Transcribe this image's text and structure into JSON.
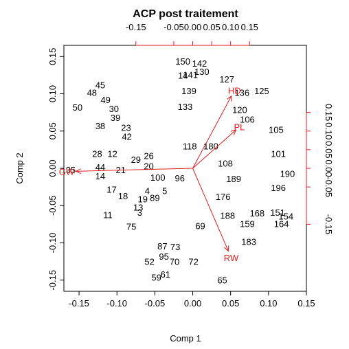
{
  "chart_data": {
    "type": "scatter",
    "subtype": "biplot",
    "title": "ACP post traitement",
    "xlabel": "Comp 1",
    "ylabel": "Comp 2",
    "xlim": [
      -0.17,
      0.15
    ],
    "ylim": [
      -0.165,
      0.165
    ],
    "x_ticks": [
      "-0.15",
      "-0.10",
      "-0.05",
      "0.00",
      "0.05",
      "0.10",
      "0.15"
    ],
    "y_ticks": [
      "-0.15",
      "-0.10",
      "-0.05",
      "0.00",
      "0.05",
      "0.10",
      "0.15"
    ],
    "loading_scale": 0.5,
    "top_ticks": [
      "-0.15",
      "-0.05",
      "0.00",
      "0.05",
      "0.10",
      "0.15"
    ],
    "right_ticks": [
      "-0.15",
      "-0.05",
      "0.00",
      "0.05",
      "0.10",
      "0.15"
    ],
    "variable_color": "#e41a1c",
    "observations": [
      {
        "label": "150",
        "x": -0.013,
        "y": 0.144
      },
      {
        "label": "142",
        "x": 0.009,
        "y": 0.141
      },
      {
        "label": "130",
        "x": 0.012,
        "y": 0.13
      },
      {
        "label": "14",
        "x": -0.013,
        "y": 0.125
      },
      {
        "label": "141",
        "x": -0.003,
        "y": 0.126
      },
      {
        "label": "127",
        "x": 0.045,
        "y": 0.12
      },
      {
        "label": "45",
        "x": -0.122,
        "y": 0.112
      },
      {
        "label": "48",
        "x": -0.133,
        "y": 0.102
      },
      {
        "label": "49",
        "x": -0.115,
        "y": 0.092
      },
      {
        "label": "139",
        "x": -0.005,
        "y": 0.104
      },
      {
        "label": "125",
        "x": 0.091,
        "y": 0.104
      },
      {
        "label": "136",
        "x": 0.065,
        "y": 0.102
      },
      {
        "label": "50",
        "x": -0.152,
        "y": 0.082
      },
      {
        "label": "30",
        "x": -0.104,
        "y": 0.08
      },
      {
        "label": "133",
        "x": -0.01,
        "y": 0.083
      },
      {
        "label": "120",
        "x": 0.062,
        "y": 0.079
      },
      {
        "label": "39",
        "x": -0.102,
        "y": 0.068
      },
      {
        "label": "38",
        "x": -0.122,
        "y": 0.057
      },
      {
        "label": "23",
        "x": -0.088,
        "y": 0.055
      },
      {
        "label": "42",
        "x": -0.087,
        "y": 0.043
      },
      {
        "label": "106",
        "x": 0.072,
        "y": 0.066
      },
      {
        "label": "105",
        "x": 0.11,
        "y": 0.052
      },
      {
        "label": "118",
        "x": -0.004,
        "y": 0.03
      },
      {
        "label": "180",
        "x": 0.024,
        "y": 0.03
      },
      {
        "label": "101",
        "x": 0.113,
        "y": 0.02
      },
      {
        "label": "28",
        "x": -0.126,
        "y": 0.02
      },
      {
        "label": "12",
        "x": -0.106,
        "y": 0.02
      },
      {
        "label": "26",
        "x": -0.058,
        "y": 0.017
      },
      {
        "label": "29",
        "x": -0.075,
        "y": 0.012
      },
      {
        "label": "20",
        "x": -0.058,
        "y": 0.003
      },
      {
        "label": "21",
        "x": -0.095,
        "y": -0.002
      },
      {
        "label": "44",
        "x": -0.122,
        "y": 0.002
      },
      {
        "label": "35",
        "x": -0.161,
        "y": -0.002
      },
      {
        "label": "14",
        "x": -0.122,
        "y": -0.01
      },
      {
        "label": "100",
        "x": -0.046,
        "y": -0.012
      },
      {
        "label": "96",
        "x": -0.017,
        "y": -0.013
      },
      {
        "label": "108",
        "x": 0.043,
        "y": 0.007
      },
      {
        "label": "189",
        "x": 0.054,
        "y": -0.014
      },
      {
        "label": "190",
        "x": 0.125,
        "y": -0.007
      },
      {
        "label": "196",
        "x": 0.113,
        "y": -0.026
      },
      {
        "label": "17",
        "x": -0.107,
        "y": -0.028
      },
      {
        "label": "18",
        "x": -0.092,
        "y": -0.037
      },
      {
        "label": "19",
        "x": -0.066,
        "y": -0.041
      },
      {
        "label": "4",
        "x": -0.06,
        "y": -0.03
      },
      {
        "label": "5",
        "x": -0.037,
        "y": -0.03
      },
      {
        "label": "89",
        "x": -0.05,
        "y": -0.039
      },
      {
        "label": "176",
        "x": 0.04,
        "y": -0.038
      },
      {
        "label": "13",
        "x": -0.072,
        "y": -0.052
      },
      {
        "label": "3",
        "x": -0.07,
        "y": -0.059
      },
      {
        "label": "151",
        "x": 0.112,
        "y": -0.059
      },
      {
        "label": "154",
        "x": 0.123,
        "y": -0.064
      },
      {
        "label": "11",
        "x": -0.112,
        "y": -0.062
      },
      {
        "label": "188",
        "x": 0.046,
        "y": -0.063
      },
      {
        "label": "168",
        "x": 0.085,
        "y": -0.06
      },
      {
        "label": "164",
        "x": 0.117,
        "y": -0.074
      },
      {
        "label": "75",
        "x": -0.081,
        "y": -0.078
      },
      {
        "label": "69",
        "x": 0.01,
        "y": -0.077
      },
      {
        "label": "159",
        "x": 0.072,
        "y": -0.074
      },
      {
        "label": "183",
        "x": 0.074,
        "y": -0.098
      },
      {
        "label": "52",
        "x": -0.057,
        "y": -0.125
      },
      {
        "label": "70",
        "x": -0.024,
        "y": -0.125
      },
      {
        "label": "72",
        "x": 0.001,
        "y": -0.125
      },
      {
        "label": "61",
        "x": -0.036,
        "y": -0.142
      },
      {
        "label": "59",
        "x": -0.048,
        "y": -0.146
      },
      {
        "label": "65",
        "x": 0.039,
        "y": -0.15
      },
      {
        "label": "87",
        "x": -0.04,
        "y": -0.104
      },
      {
        "label": "73",
        "x": -0.023,
        "y": -0.105
      },
      {
        "label": "95",
        "x": -0.038,
        "y": -0.118
      }
    ],
    "variables": [
      {
        "name": "GW",
        "x": -0.308,
        "y": -0.008
      },
      {
        "name": "RW",
        "x": 0.094,
        "y": -0.222
      },
      {
        "name": "PL",
        "x": 0.114,
        "y": 0.103
      },
      {
        "name": "HD",
        "x": 0.102,
        "y": 0.194
      }
    ]
  }
}
